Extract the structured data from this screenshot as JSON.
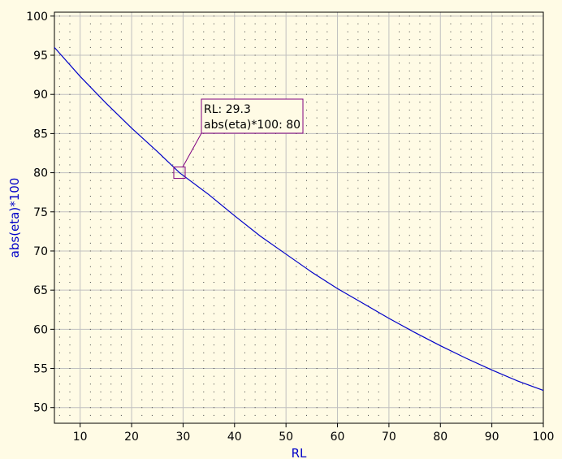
{
  "chart_data": {
    "type": "line",
    "title": "",
    "xlabel": "RL",
    "ylabel": "abs(eta)*100",
    "xlim": [
      5,
      100
    ],
    "ylim": [
      48,
      100.5
    ],
    "grid": true,
    "minor_grid_dots": true,
    "x_ticks": [
      10,
      20,
      30,
      40,
      50,
      60,
      70,
      80,
      90,
      100
    ],
    "y_ticks": [
      50,
      55,
      60,
      65,
      70,
      75,
      80,
      85,
      90,
      95,
      100
    ],
    "x_tick_labels": [
      "10",
      "20",
      "30",
      "40",
      "50",
      "60",
      "70",
      "80",
      "90",
      "100"
    ],
    "y_tick_labels": [
      "50",
      "55",
      "60",
      "65",
      "70",
      "75",
      "80",
      "85",
      "90",
      "95",
      "100"
    ],
    "series": [
      {
        "name": "",
        "color": "#0000C8",
        "x": [
          5,
          10,
          15,
          20,
          25,
          29.3,
          35,
          40,
          45,
          50,
          55,
          60,
          65,
          70,
          75,
          80,
          85,
          90,
          95,
          100
        ],
        "y": [
          96.0,
          92.3,
          88.9,
          85.7,
          82.7,
          80.0,
          77.2,
          74.5,
          71.9,
          69.6,
          67.3,
          65.2,
          63.3,
          61.4,
          59.6,
          57.9,
          56.3,
          54.8,
          53.4,
          52.2
        ]
      }
    ],
    "marker": {
      "x": 29.3,
      "y": 80,
      "line1": "RL: 29.3",
      "line2": "abs(eta)*100: 80",
      "color": "#800080"
    },
    "colors": {
      "background": "#FFFBE5",
      "axis_title": "#0000C8",
      "grid": "#C0C0C0",
      "minor_dot": "#404040",
      "frame": "#000000"
    }
  }
}
